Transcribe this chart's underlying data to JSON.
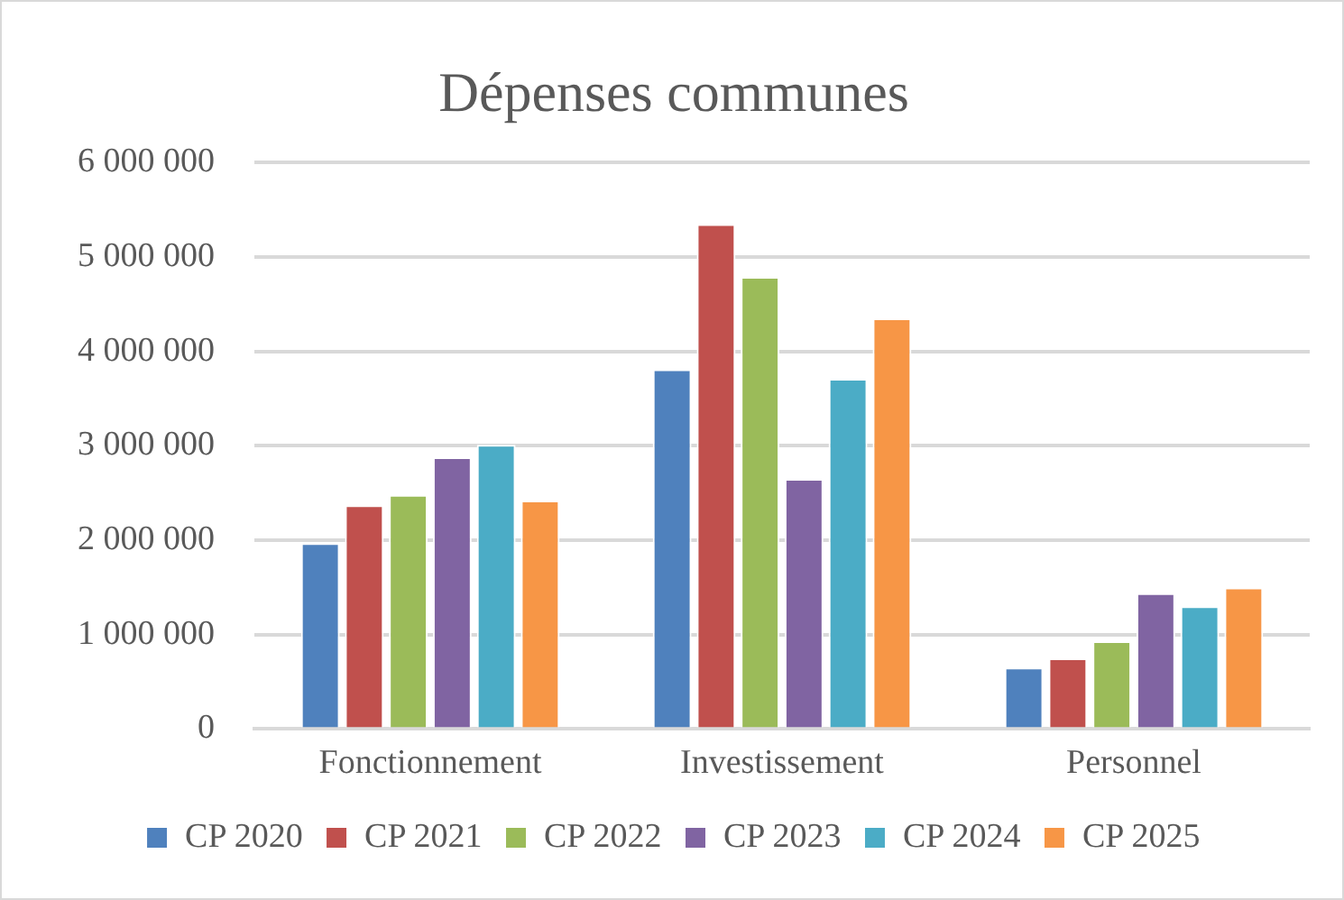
{
  "chart_data": {
    "type": "bar",
    "title": "Dépenses communes",
    "categories": [
      "Fonctionnement",
      "Investissement",
      "Personnel"
    ],
    "series": [
      {
        "name": "CP 2020",
        "color": "#4f81bd",
        "values": [
          1970000,
          3810000,
          650000
        ]
      },
      {
        "name": "CP 2021",
        "color": "#c0504d",
        "values": [
          2370000,
          5350000,
          750000
        ]
      },
      {
        "name": "CP 2022",
        "color": "#9bbb59",
        "values": [
          2480000,
          4790000,
          930000
        ]
      },
      {
        "name": "CP 2023",
        "color": "#8064a2",
        "values": [
          2880000,
          2650000,
          1440000
        ]
      },
      {
        "name": "CP 2024",
        "color": "#4bacc6",
        "values": [
          3010000,
          3710000,
          1300000
        ]
      },
      {
        "name": "CP 2025",
        "color": "#f79646",
        "values": [
          2420000,
          4350000,
          1500000
        ]
      }
    ],
    "ylim": [
      0,
      6000000
    ],
    "yticks": [
      0,
      {
        "value": 1000000,
        "label": "1 000 000"
      },
      {
        "value": 2000000,
        "label": "2 000 000"
      },
      {
        "value": 3000000,
        "label": "3 000 000"
      },
      {
        "value": 4000000,
        "label": "4 000 000"
      },
      {
        "value": 5000000,
        "label": "5 000 000"
      },
      {
        "value": 6000000,
        "label": "6 000 000"
      }
    ],
    "grid": "y",
    "legend": "bottom"
  }
}
